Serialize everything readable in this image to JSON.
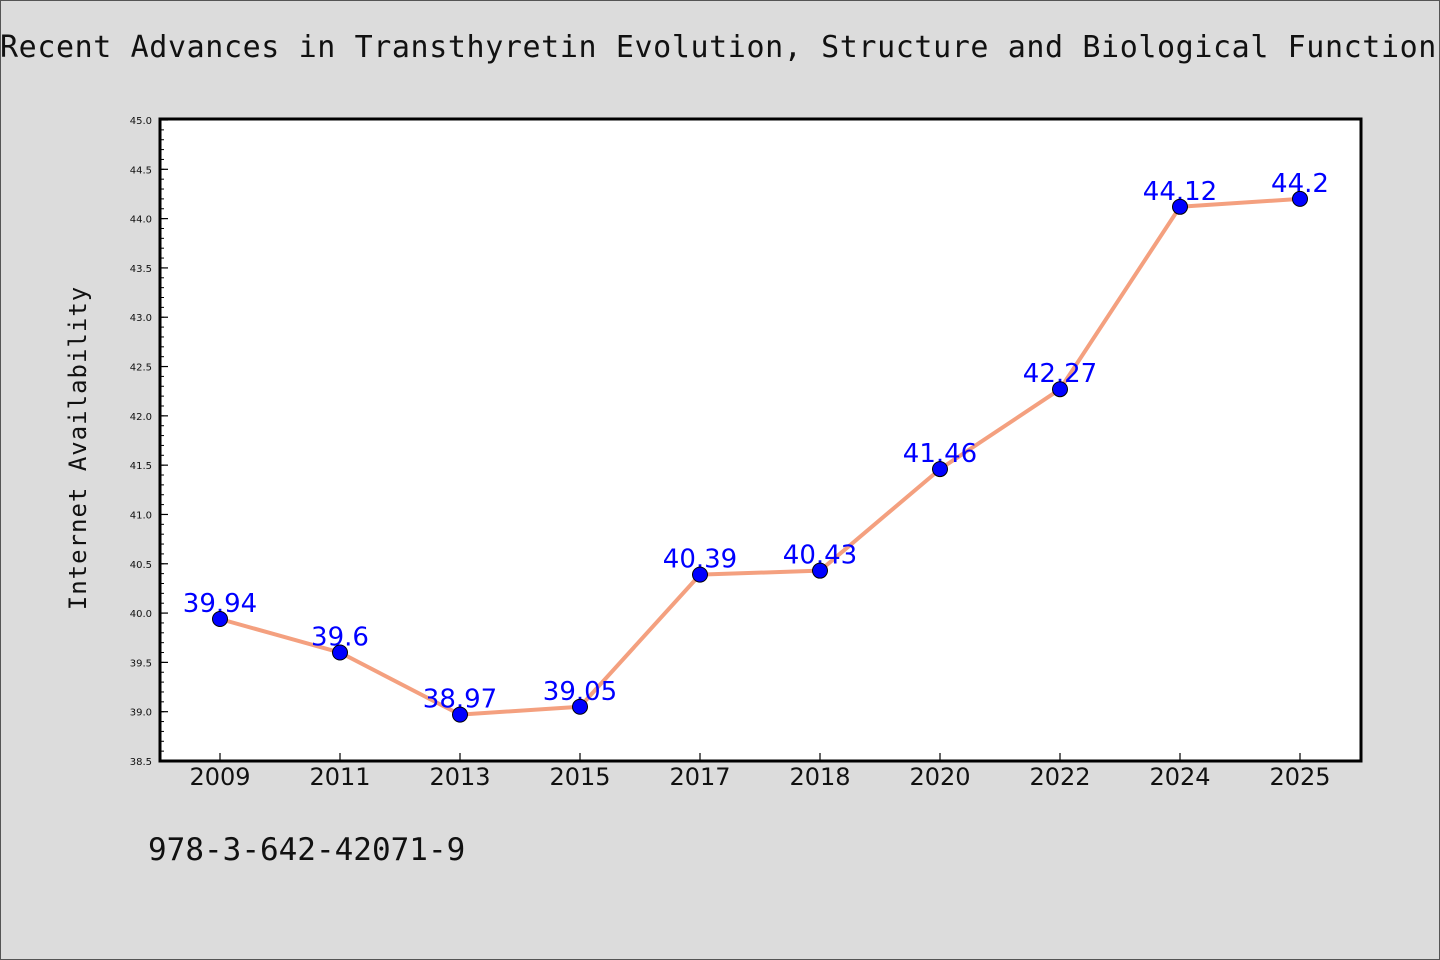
{
  "colors": {
    "background": "#dcdcdc",
    "plot_area": "#ffffff",
    "line": "#f4a07f",
    "marker": "#0000ff",
    "data_label": "#0000ff"
  },
  "chart_data": {
    "type": "line",
    "title": "Recent Advances in Transthyretin Evolution, Structure and Biological Functions",
    "xlabel": "",
    "ylabel": "Internet Availability",
    "categories": [
      "2009",
      "2011",
      "2013",
      "2015",
      "2017",
      "2018",
      "2020",
      "2022",
      "2024",
      "2025"
    ],
    "series": [
      {
        "values": [
          39.94,
          39.6,
          38.97,
          39.05,
          40.39,
          40.43,
          41.46,
          42.27,
          44.12,
          44.2
        ],
        "labels": [
          "39.94",
          "39.6",
          "38.97",
          "39.05",
          "40.39",
          "40.43",
          "41.46",
          "42.27",
          "44.12",
          "44.2"
        ]
      }
    ],
    "ylim": [
      38.5,
      45.0
    ],
    "yticks": [
      "38.5",
      "39.0",
      "39.5",
      "40.0",
      "40.5",
      "41.0",
      "41.5",
      "42.0",
      "42.5",
      "43.0",
      "43.5",
      "44.0",
      "44.5",
      "45.0"
    ],
    "grid": false,
    "legend": "none"
  },
  "footer": {
    "note": "978-3-642-42071-9"
  }
}
